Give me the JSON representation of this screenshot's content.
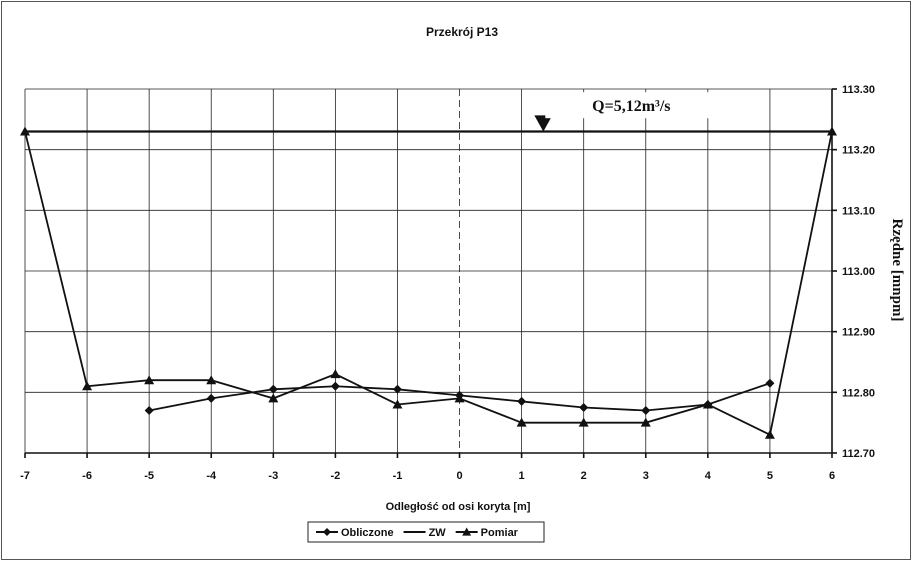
{
  "chart_data": {
    "type": "line",
    "title": "Przekrój P13",
    "xlabel": "Odległość od osi koryta [m]",
    "ylabel": "Rzędne [mnpm]",
    "xlim": [
      -7,
      6
    ],
    "ylim": [
      112.7,
      113.3
    ],
    "x_ticks": [
      "-7",
      "-6",
      "-5",
      "-4",
      "-3",
      "-2",
      "-1",
      "0",
      "1",
      "2",
      "3",
      "4",
      "5",
      "6"
    ],
    "y_ticks": [
      "112.70",
      "112.80",
      "112.90",
      "113.00",
      "113.10",
      "113.20",
      "113.30"
    ],
    "grid": true,
    "legend_position": "bottom",
    "annotation": {
      "text": "Q=5,12m³/s",
      "x": 1.35,
      "y": 113.27
    },
    "water_marker": {
      "x": 1.35,
      "y": 113.23
    },
    "series": [
      {
        "name": "Obliczone",
        "marker": "diamond",
        "x": [
          -5,
          -4,
          -3,
          -2,
          -1,
          0,
          1,
          2,
          3,
          4,
          5
        ],
        "y": [
          112.77,
          112.79,
          112.805,
          112.81,
          112.805,
          112.795,
          112.785,
          112.775,
          112.77,
          112.78,
          112.815
        ]
      },
      {
        "name": "ZW",
        "marker": "none",
        "x": [
          -7,
          6
        ],
        "y": [
          113.23,
          113.23
        ]
      },
      {
        "name": "Pomiar",
        "marker": "triangle",
        "x": [
          -7,
          -6,
          -5,
          -4,
          -3,
          -2,
          -1,
          0,
          1,
          2,
          3,
          4,
          5,
          6
        ],
        "y": [
          113.23,
          112.81,
          112.82,
          112.82,
          112.79,
          112.83,
          112.78,
          112.79,
          112.75,
          112.75,
          112.75,
          112.78,
          112.73,
          113.23
        ]
      }
    ]
  }
}
